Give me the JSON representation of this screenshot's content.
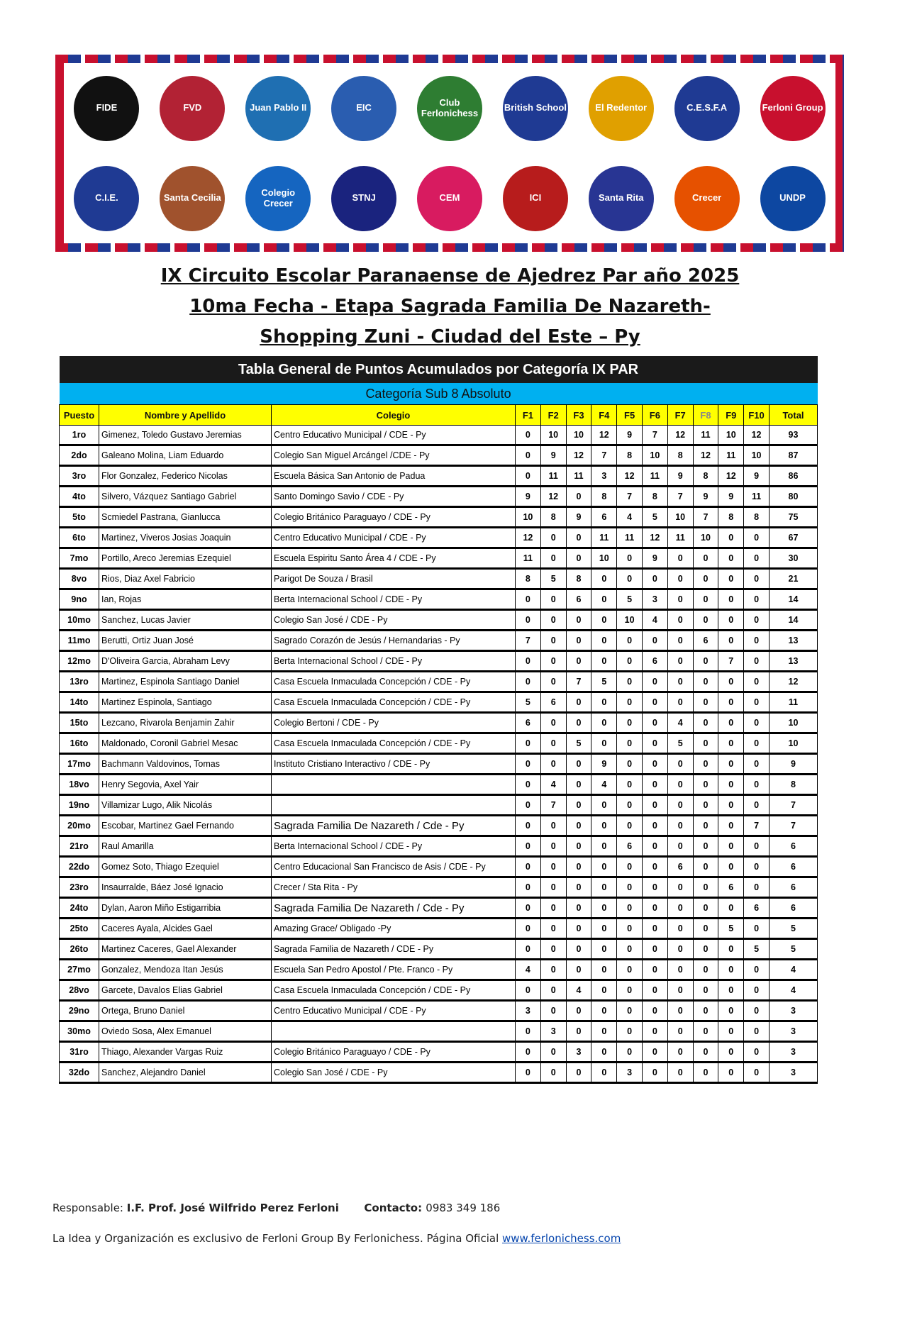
{
  "banner": {
    "logos": [
      {
        "text": "FIDE",
        "color": "#111111"
      },
      {
        "text": "FVD",
        "color": "#b22234"
      },
      {
        "text": "Juan Pablo II",
        "color": "#1f6fb2"
      },
      {
        "text": "EIC",
        "color": "#2a5db0"
      },
      {
        "text": "Club Ferlonichess",
        "color": "#2e7d32"
      },
      {
        "text": "British School",
        "color": "#1f3a93"
      },
      {
        "text": "El Redentor",
        "color": "#e0a000"
      },
      {
        "text": "C.E.S.F.A",
        "color": "#1f3a93"
      },
      {
        "text": "Ferloni Group",
        "color": "#c8102e"
      },
      {
        "text": "C.I.E.",
        "color": "#1f3a93"
      },
      {
        "text": "Santa Cecilia",
        "color": "#a0522d"
      },
      {
        "text": "Colegio Crecer",
        "color": "#1565c0"
      },
      {
        "text": "STNJ",
        "color": "#1a237e"
      },
      {
        "text": "CEM",
        "color": "#d81b60"
      },
      {
        "text": "ICI",
        "color": "#b71c1c"
      },
      {
        "text": "Santa Rita",
        "color": "#283593"
      },
      {
        "text": "Crecer",
        "color": "#e65100"
      },
      {
        "text": "UNDP",
        "color": "#0d47a1"
      }
    ]
  },
  "titles": [
    "IX Circuito Escolar Paranaense de Ajedrez Par año 2025",
    "10ma Fecha - Etapa Sagrada Familia De Nazareth-",
    "Shopping Zuni  - Ciudad del Este – Py"
  ],
  "table": {
    "title": "Tabla General de Puntos Acumulados por Categoría IX PAR",
    "category": "Categoría Sub 8 Absoluto",
    "headers": [
      "Puesto",
      "Nombre y Apellido",
      "Colegio",
      "F1",
      "F2",
      "F3",
      "F4",
      "F5",
      "F6",
      "F7",
      "F8",
      "F9",
      "F10",
      "Total"
    ],
    "rows": [
      [
        "1ro",
        "Gimenez, Toledo Gustavo Jeremias",
        "Centro Educativo Municipal / CDE - Py",
        "0",
        "10",
        "10",
        "12",
        "9",
        "7",
        "12",
        "11",
        "10",
        "12",
        "93"
      ],
      [
        "2do",
        "Galeano Molina, Liam Eduardo",
        "Colegio San Miguel Arcángel /CDE - Py",
        "0",
        "9",
        "12",
        "7",
        "8",
        "10",
        "8",
        "12",
        "11",
        "10",
        "87"
      ],
      [
        "3ro",
        "Flor Gonzalez, Federico Nicolas",
        "Escuela Básica San Antonio de Padua",
        "0",
        "11",
        "11",
        "3",
        "12",
        "11",
        "9",
        "8",
        "12",
        "9",
        "86"
      ],
      [
        "4to",
        "Silvero, Vázquez Santiago Gabriel",
        "Santo Domingo Savio / CDE - Py",
        "9",
        "12",
        "0",
        "8",
        "7",
        "8",
        "7",
        "9",
        "9",
        "11",
        "80"
      ],
      [
        "5to",
        "Scmiedel Pastrana, Gianlucca",
        "Colegio Británico Paraguayo / CDE - Py",
        "10",
        "8",
        "9",
        "6",
        "4",
        "5",
        "10",
        "7",
        "8",
        "8",
        "75"
      ],
      [
        "6to",
        "Martinez, Viveros Josias Joaquin",
        "Centro Educativo Municipal / CDE - Py",
        "12",
        "0",
        "0",
        "11",
        "11",
        "12",
        "11",
        "10",
        "0",
        "0",
        "67"
      ],
      [
        "7mo",
        "Portillo, Areco Jeremias Ezequiel",
        "Escuela Espiritu Santo Área 4 / CDE - Py",
        "11",
        "0",
        "0",
        "10",
        "0",
        "9",
        "0",
        "0",
        "0",
        "0",
        "30"
      ],
      [
        "8vo",
        "Rios, Diaz Axel Fabricio",
        "Parigot De Souza / Brasil",
        "8",
        "5",
        "8",
        "0",
        "0",
        "0",
        "0",
        "0",
        "0",
        "0",
        "21"
      ],
      [
        "9no",
        "Ian, Rojas",
        "Berta Internacional School / CDE - Py",
        "0",
        "0",
        "6",
        "0",
        "5",
        "3",
        "0",
        "0",
        "0",
        "0",
        "14"
      ],
      [
        "10mo",
        "Sanchez, Lucas Javier",
        "Colegio San José / CDE - Py",
        "0",
        "0",
        "0",
        "0",
        "10",
        "4",
        "0",
        "0",
        "0",
        "0",
        "14"
      ],
      [
        "11mo",
        "Berutti, Ortiz Juan José",
        "Sagrado Corazón de Jesús / Hernandarias - Py",
        "7",
        "0",
        "0",
        "0",
        "0",
        "0",
        "0",
        "6",
        "0",
        "0",
        "13"
      ],
      [
        "12mo",
        "D'Oliveira Garcia, Abraham Levy",
        "Berta Internacional School / CDE - Py",
        "0",
        "0",
        "0",
        "0",
        "0",
        "6",
        "0",
        "0",
        "7",
        "0",
        "13"
      ],
      [
        "13ro",
        "Martinez, Espinola Santiago Daniel",
        "Casa Escuela Inmaculada Concepción / CDE - Py",
        "0",
        "0",
        "7",
        "5",
        "0",
        "0",
        "0",
        "0",
        "0",
        "0",
        "12"
      ],
      [
        "14to",
        "Martinez Espinola, Santiago",
        "Casa Escuela Inmaculada Concepción / CDE - Py",
        "5",
        "6",
        "0",
        "0",
        "0",
        "0",
        "0",
        "0",
        "0",
        "0",
        "11"
      ],
      [
        "15to",
        "Lezcano, Rivarola Benjamin Zahir",
        "Colegio Bertoni / CDE - Py",
        "6",
        "0",
        "0",
        "0",
        "0",
        "0",
        "4",
        "0",
        "0",
        "0",
        "10"
      ],
      [
        "16to",
        "Maldonado, Coronil Gabriel Mesac",
        "Casa Escuela Inmaculada Concepción / CDE - Py",
        "0",
        "0",
        "5",
        "0",
        "0",
        "0",
        "5",
        "0",
        "0",
        "0",
        "10"
      ],
      [
        "17mo",
        "Bachmann Valdovinos, Tomas",
        "Instituto Cristiano Interactivo / CDE - Py",
        "0",
        "0",
        "0",
        "9",
        "0",
        "0",
        "0",
        "0",
        "0",
        "0",
        "9"
      ],
      [
        "18vo",
        "Henry Segovia, Axel Yair",
        "",
        "0",
        "4",
        "0",
        "4",
        "0",
        "0",
        "0",
        "0",
        "0",
        "0",
        "8"
      ],
      [
        "19no",
        "Villamizar Lugo, Alik Nicolás",
        "",
        "0",
        "7",
        "0",
        "0",
        "0",
        "0",
        "0",
        "0",
        "0",
        "0",
        "7"
      ],
      [
        "20mo",
        "Escobar, Martinez Gael Fernando",
        "Sagrada Familia De Nazareth / Cde - Py",
        "0",
        "0",
        "0",
        "0",
        "0",
        "0",
        "0",
        "0",
        "0",
        "7",
        "7"
      ],
      [
        "21ro",
        "Raul Amarilla",
        "Berta Internacional School / CDE - Py",
        "0",
        "0",
        "0",
        "0",
        "6",
        "0",
        "0",
        "0",
        "0",
        "0",
        "6"
      ],
      [
        "22do",
        "Gomez Soto, Thiago Ezequiel",
        "Centro Educacional San Francisco de Asis / CDE - Py",
        "0",
        "0",
        "0",
        "0",
        "0",
        "0",
        "6",
        "0",
        "0",
        "0",
        "6"
      ],
      [
        "23ro",
        "Insaurralde, Báez José Ignacio",
        "Crecer / Sta Rita - Py",
        "0",
        "0",
        "0",
        "0",
        "0",
        "0",
        "0",
        "0",
        "6",
        "0",
        "6"
      ],
      [
        "24to",
        "Dylan, Aaron Miño Estigarribia",
        "Sagrada Familia De Nazareth / Cde - Py",
        "0",
        "0",
        "0",
        "0",
        "0",
        "0",
        "0",
        "0",
        "0",
        "6",
        "6"
      ],
      [
        "25to",
        "Caceres Ayala, Alcides Gael",
        "Amazing Grace/ Obligado -Py",
        "0",
        "0",
        "0",
        "0",
        "0",
        "0",
        "0",
        "0",
        "5",
        "0",
        "5"
      ],
      [
        "26to",
        "Martinez Caceres, Gael Alexander",
        "Sagrada Familia de Nazareth / CDE - Py",
        "0",
        "0",
        "0",
        "0",
        "0",
        "0",
        "0",
        "0",
        "0",
        "5",
        "5"
      ],
      [
        "27mo",
        "Gonzalez, Mendoza Itan Jesús",
        "Escuela San Pedro Apostol / Pte. Franco - Py",
        "4",
        "0",
        "0",
        "0",
        "0",
        "0",
        "0",
        "0",
        "0",
        "0",
        "4"
      ],
      [
        "28vo",
        "Garcete, Davalos Elias Gabriel",
        "Casa Escuela Inmaculada Concepción / CDE - Py",
        "0",
        "0",
        "4",
        "0",
        "0",
        "0",
        "0",
        "0",
        "0",
        "0",
        "4"
      ],
      [
        "29no",
        "Ortega, Bruno Daniel",
        "Centro Educativo Municipal / CDE - Py",
        "3",
        "0",
        "0",
        "0",
        "0",
        "0",
        "0",
        "0",
        "0",
        "0",
        "3"
      ],
      [
        "30mo",
        "Oviedo Sosa, Alex Emanuel",
        "",
        "0",
        "3",
        "0",
        "0",
        "0",
        "0",
        "0",
        "0",
        "0",
        "0",
        "3"
      ],
      [
        "31ro",
        "Thiago, Alexander Vargas Ruiz",
        "Colegio Británico Paraguayo / CDE - Py",
        "0",
        "0",
        "3",
        "0",
        "0",
        "0",
        "0",
        "0",
        "0",
        "0",
        "3"
      ],
      [
        "32do",
        "Sanchez, Alejandro Daniel",
        "Colegio San José / CDE - Py",
        "0",
        "0",
        "0",
        "0",
        "3",
        "0",
        "0",
        "0",
        "0",
        "0",
        "3"
      ]
    ]
  },
  "footer": {
    "resp_label": "Responsable: ",
    "resp_name": "I.F. Prof. José Wilfrido Perez Ferloni",
    "contact_label": "Contacto: ",
    "contact_value": "0983 349 186",
    "org_text": "La Idea y Organización es exclusivo de Ferloni Group By Ferlonichess. Página Oficial ",
    "link": "www.ferlonichess.com"
  }
}
